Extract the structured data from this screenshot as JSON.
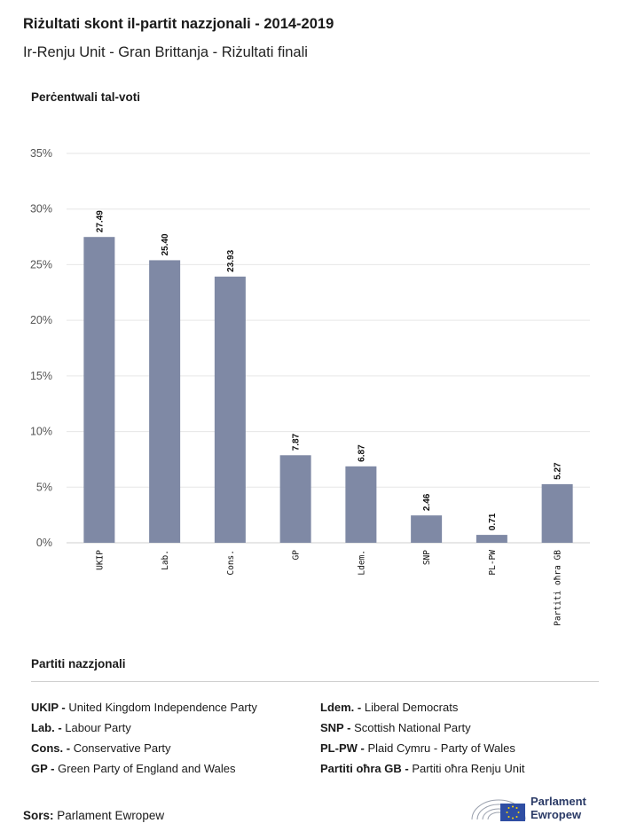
{
  "header": {
    "title": "Riżultati skont il-partit nazzjonali - 2014-2019",
    "subtitle": "Ir-Renju Unit - Gran Brittanja - Riżultati finali"
  },
  "chart_data": {
    "type": "bar",
    "ylabel": "Perċentwali tal-voti",
    "categories": [
      "UKIP",
      "Lab.",
      "Cons.",
      "GP",
      "Ldem.",
      "SNP",
      "PL-PW",
      "Partiti oħra GB"
    ],
    "values": [
      27.49,
      25.4,
      23.93,
      7.87,
      6.87,
      2.46,
      0.71,
      5.27
    ],
    "value_labels": [
      "27.49",
      "25.40",
      "23.93",
      "7.87",
      "6.87",
      "2.46",
      "0.71",
      "5.27"
    ],
    "ylim": [
      0,
      35
    ],
    "yticks": [
      0,
      5,
      10,
      15,
      20,
      25,
      30,
      35
    ],
    "ytick_labels": [
      "0%",
      "5%",
      "10%",
      "15%",
      "20%",
      "25%",
      "30%",
      "35%"
    ],
    "grid": true,
    "bar_color": "#7f89a5"
  },
  "legend": {
    "title": "Partiti nazzjonali",
    "col1": [
      {
        "abbr": "UKIP -",
        "name": "United Kingdom Independence Party"
      },
      {
        "abbr": "Lab. -",
        "name": "Labour Party"
      },
      {
        "abbr": "Cons. -",
        "name": "Conservative Party"
      },
      {
        "abbr": "GP -",
        "name": "Green Party of England and Wales"
      }
    ],
    "col2": [
      {
        "abbr": "Ldem. -",
        "name": "Liberal Democrats"
      },
      {
        "abbr": "SNP -",
        "name": "Scottish National Party"
      },
      {
        "abbr": "PL-PW -",
        "name": "Plaid Cymru - Party of Wales"
      },
      {
        "abbr": "Partiti oħra GB -",
        "name": "Partiti oħra Renju Unit"
      }
    ]
  },
  "footer": {
    "source_label": "Sors:",
    "source_value": "Parlament Ewropew",
    "logo_line1": "Parlament",
    "logo_line2": "Ewropew"
  },
  "colors": {
    "bar": "#7f89a5",
    "grid": "#e6e6e6",
    "logo_blue": "#2a3a66"
  }
}
